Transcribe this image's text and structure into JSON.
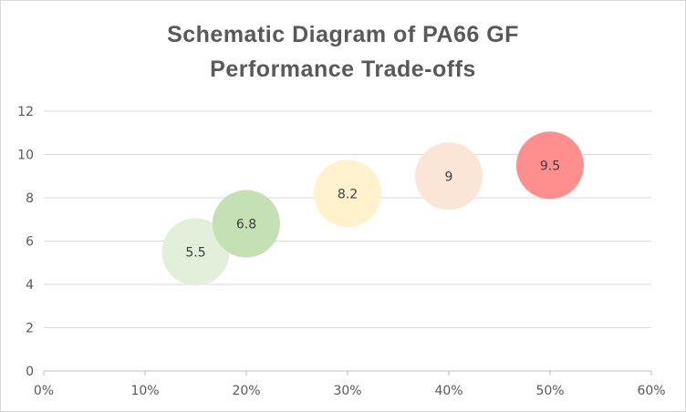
{
  "chart_data": {
    "type": "bubble",
    "title_lines": [
      "Schematic Diagram of PA66 GF",
      "Performance Trade-offs"
    ],
    "xlabel": "",
    "ylabel": "",
    "xlim": [
      0,
      0.6
    ],
    "ylim": [
      0,
      12
    ],
    "x_ticks": [
      {
        "value": 0,
        "label": "0%"
      },
      {
        "value": 0.1,
        "label": "10%"
      },
      {
        "value": 0.2,
        "label": "20%"
      },
      {
        "value": 0.3,
        "label": "30%"
      },
      {
        "value": 0.4,
        "label": "40%"
      },
      {
        "value": 0.5,
        "label": "50%"
      },
      {
        "value": 0.6,
        "label": "60%"
      }
    ],
    "y_ticks": [
      {
        "value": 0,
        "label": "0"
      },
      {
        "value": 2,
        "label": "2"
      },
      {
        "value": 4,
        "label": "4"
      },
      {
        "value": 6,
        "label": "6"
      },
      {
        "value": 8,
        "label": "8"
      },
      {
        "value": 10,
        "label": "10"
      },
      {
        "value": 12,
        "label": "12"
      }
    ],
    "grid": "horizontal",
    "legend": "none",
    "points": [
      {
        "x": 0.15,
        "y": 5.5,
        "label": "5.5",
        "color": "#e2efda"
      },
      {
        "x": 0.2,
        "y": 6.8,
        "label": "6.8",
        "color": "#c5e0b4"
      },
      {
        "x": 0.3,
        "y": 8.2,
        "label": "8.2",
        "color": "#fff2cc"
      },
      {
        "x": 0.4,
        "y": 9.0,
        "label": "9",
        "color": "#fbe5d6"
      },
      {
        "x": 0.5,
        "y": 9.5,
        "label": "9.5",
        "color": "#ff8f8f"
      }
    ],
    "colors": {
      "gridline": "#d9d9d9",
      "axis": "#bfbfbf",
      "text": "#595959"
    }
  }
}
